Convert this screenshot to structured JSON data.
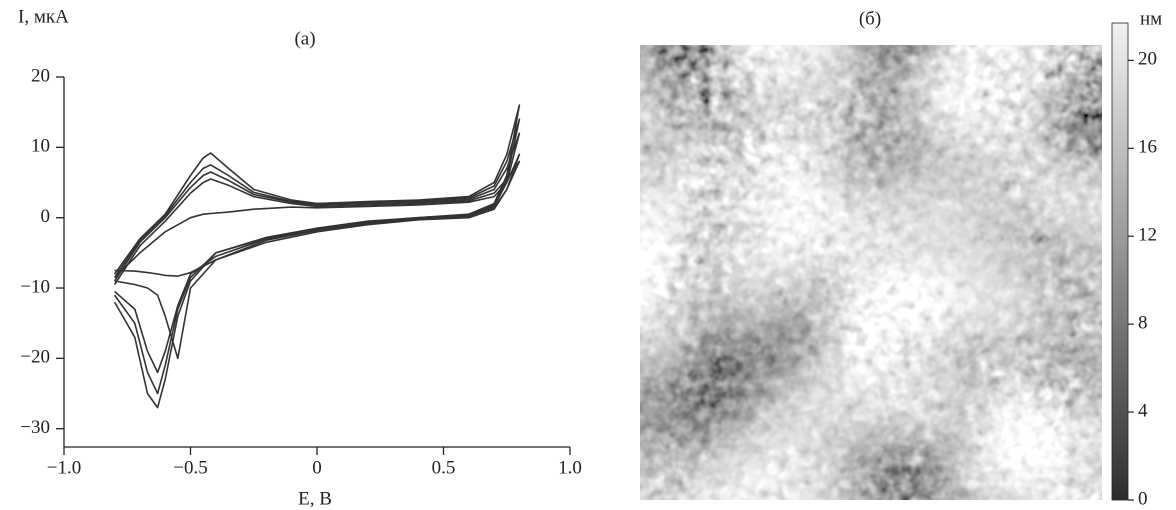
{
  "chart_data": [
    {
      "type": "line",
      "title": "(a)",
      "ylabel": "I, мкА",
      "xlabel": "E, В",
      "x": [
        -0.8,
        -0.7,
        -0.6,
        -0.5,
        -0.45,
        -0.42,
        -0.35,
        -0.25,
        -0.1,
        0,
        0.2,
        0.4,
        0.6,
        0.7,
        0.75,
        0.8,
        0.75,
        0.7,
        0.6,
        0.4,
        0.2,
        0,
        -0.2,
        -0.4,
        -0.5,
        -0.55,
        -0.6,
        -0.63,
        -0.67,
        -0.72,
        -0.8
      ],
      "series": [
        {
          "color": "#333333",
          "values": [
            -8,
            -3,
            0.5,
            6,
            8.5,
            9.2,
            7,
            4,
            2.5,
            2,
            2.3,
            2.5,
            3,
            5,
            9,
            16,
            6,
            2,
            0.5,
            0,
            -0.5,
            -1.5,
            -2.8,
            -5,
            -9,
            -14,
            -23,
            -27,
            -25,
            -17,
            -12
          ]
        },
        {
          "color": "#333333",
          "values": [
            -8.5,
            -3.2,
            0.3,
            5,
            7,
            7.5,
            6,
            3.6,
            2.3,
            2,
            2.2,
            2.4,
            2.8,
            4.5,
            8,
            14,
            5.5,
            1.8,
            0.4,
            0,
            -0.6,
            -1.6,
            -2.9,
            -5,
            -8.5,
            -13,
            -21,
            -25,
            -22,
            -15,
            -11
          ]
        },
        {
          "color": "#333333",
          "values": [
            -9,
            -3.5,
            0,
            4.3,
            6,
            6.5,
            5.3,
            3.3,
            2.2,
            1.8,
            2,
            2.2,
            2.6,
            4,
            7,
            12,
            5,
            1.6,
            0.3,
            -0.1,
            -0.7,
            -1.7,
            -3,
            -5.5,
            -8,
            -12.5,
            -19,
            -22,
            -19,
            -13,
            -10.5
          ]
        },
        {
          "color": "#333333",
          "values": [
            -9.5,
            -4,
            -0.5,
            3.5,
            5,
            5.5,
            4.6,
            3,
            2,
            1.6,
            1.8,
            2,
            2.4,
            3.5,
            5.5,
            8,
            4,
            1.4,
            0.2,
            -0.2,
            -0.8,
            -1.8,
            -3.2,
            -6,
            -10,
            -20,
            -14,
            -11,
            -10,
            -9.5,
            -9
          ]
        },
        {
          "color": "#333333",
          "values": [
            -8.5,
            -5,
            -2,
            0,
            0.5,
            0.6,
            0.8,
            1.2,
            1.5,
            1.4,
            1.6,
            1.8,
            2.2,
            3,
            5,
            9,
            4,
            1.2,
            0,
            -0.3,
            -1,
            -2,
            -3.5,
            -6,
            -7.8,
            -8.3,
            -8.2,
            -8,
            -7.8,
            -7.6,
            -7.5
          ]
        }
      ],
      "xlim": [
        -1.0,
        1.0
      ],
      "xticks": [
        {
          "value": -1.0,
          "label": "−1.0"
        },
        {
          "value": -0.5,
          "label": "−0.5"
        },
        0,
        {
          "value": 0.5,
          "label": "0.5"
        },
        {
          "value": 1.0,
          "label": "1.0"
        }
      ],
      "ylim": [
        -32.6,
        20
      ],
      "yticks": [
        20,
        10,
        0,
        {
          "value": -10,
          "label": "−10"
        },
        {
          "value": -20,
          "label": "−20"
        },
        {
          "value": -30,
          "label": "−30"
        }
      ]
    },
    {
      "type": "heatmap",
      "title": "(б)",
      "colorbar_label": "нм",
      "clim": [
        0,
        21.7
      ],
      "cticks": [
        0,
        4,
        8,
        12,
        16,
        20
      ],
      "colormap": [
        "#2e2e2e",
        "#f2f2f2"
      ]
    }
  ]
}
